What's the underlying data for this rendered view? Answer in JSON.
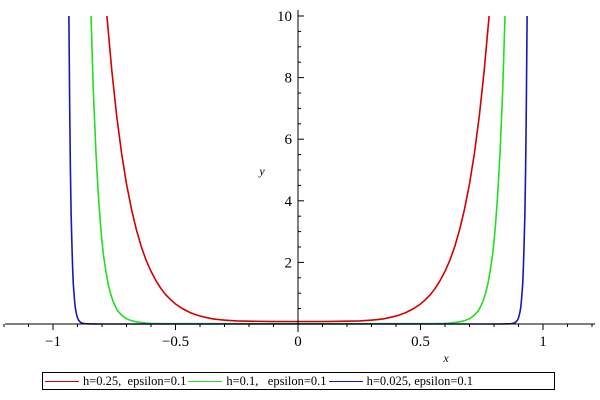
{
  "chart_data": {
    "type": "line",
    "title": "",
    "xlabel": "x",
    "ylabel": "y",
    "xlim": [
      -1.2,
      1.2
    ],
    "ylim": [
      -0.05,
      10
    ],
    "xticks": [
      -1,
      -0.5,
      0,
      0.5,
      1
    ],
    "xtick_labels": [
      "−1",
      "−0.5",
      "0",
      "0.5",
      "1"
    ],
    "yticks": [
      2,
      4,
      6,
      8,
      10
    ],
    "ytick_labels": [
      "2",
      "4",
      "6",
      "8",
      "10"
    ],
    "grid": false,
    "legend_position": "bottom",
    "series": [
      {
        "name": "h=0.25,  epsilon=0.1",
        "color": "#d40000",
        "x": [
          -0.78,
          -0.76,
          -0.74,
          -0.72,
          -0.7,
          -0.68,
          -0.66,
          -0.64,
          -0.62,
          -0.6,
          -0.58,
          -0.56,
          -0.54,
          -0.52,
          -0.5,
          -0.47,
          -0.44,
          -0.41,
          -0.38,
          -0.35,
          -0.32,
          -0.29,
          -0.25,
          -0.2,
          -0.1,
          0,
          0.1,
          0.2,
          0.25,
          0.29,
          0.32,
          0.35,
          0.38,
          0.41,
          0.44,
          0.47,
          0.5,
          0.52,
          0.54,
          0.56,
          0.58,
          0.6,
          0.62,
          0.64,
          0.66,
          0.68,
          0.7,
          0.72,
          0.74,
          0.76,
          0.78
        ],
        "y": [
          10.0,
          8.23,
          6.75,
          5.54,
          4.55,
          3.74,
          3.07,
          2.52,
          2.07,
          1.71,
          1.41,
          1.16,
          0.95,
          0.79,
          0.65,
          0.49,
          0.37,
          0.28,
          0.22,
          0.17,
          0.14,
          0.12,
          0.1,
          0.09,
          0.08,
          0.08,
          0.08,
          0.09,
          0.1,
          0.12,
          0.14,
          0.17,
          0.22,
          0.28,
          0.37,
          0.49,
          0.65,
          0.79,
          0.95,
          1.16,
          1.41,
          1.71,
          2.07,
          2.52,
          3.07,
          3.74,
          4.55,
          5.54,
          6.75,
          8.23,
          10.0
        ]
      },
      {
        "name": "h=0.1,   epsilon=0.1",
        "color": "#22dd22",
        "x": [
          -0.845,
          -0.835,
          -0.825,
          -0.815,
          -0.805,
          -0.795,
          -0.785,
          -0.775,
          -0.765,
          -0.755,
          -0.745,
          -0.735,
          -0.72,
          -0.7,
          -0.68,
          -0.66,
          -0.64,
          -0.62,
          -0.6,
          -0.55,
          -0.5,
          -0.4,
          -0.2,
          0,
          0.2,
          0.4,
          0.5,
          0.55,
          0.6,
          0.62,
          0.64,
          0.66,
          0.68,
          0.7,
          0.72,
          0.735,
          0.745,
          0.755,
          0.765,
          0.775,
          0.785,
          0.795,
          0.805,
          0.815,
          0.825,
          0.835,
          0.845
        ],
        "y": [
          10.0,
          7.5,
          5.6,
          4.2,
          3.1,
          2.3,
          1.75,
          1.3,
          0.98,
          0.74,
          0.56,
          0.42,
          0.29,
          0.17,
          0.11,
          0.07,
          0.05,
          0.03,
          0.02,
          0.01,
          0.01,
          0.01,
          0.01,
          0.01,
          0.01,
          0.01,
          0.01,
          0.01,
          0.02,
          0.03,
          0.05,
          0.07,
          0.11,
          0.17,
          0.29,
          0.42,
          0.56,
          0.74,
          0.98,
          1.3,
          1.75,
          2.3,
          3.1,
          4.2,
          5.6,
          7.5,
          10.0
        ]
      },
      {
        "name": "h=0.025, epsilon=0.1",
        "color": "#1818b8",
        "x": [
          -0.935,
          -0.932,
          -0.929,
          -0.926,
          -0.923,
          -0.92,
          -0.917,
          -0.914,
          -0.911,
          -0.908,
          -0.905,
          -0.9,
          -0.895,
          -0.89,
          -0.885,
          -0.88,
          -0.87,
          -0.86,
          -0.84,
          -0.8,
          -0.7,
          -0.4,
          0,
          0.4,
          0.7,
          0.8,
          0.84,
          0.86,
          0.87,
          0.88,
          0.885,
          0.89,
          0.895,
          0.9,
          0.905,
          0.908,
          0.911,
          0.914,
          0.917,
          0.92,
          0.923,
          0.926,
          0.929,
          0.932,
          0.935
        ],
        "y": [
          10.0,
          7.0,
          5.0,
          3.6,
          2.6,
          1.85,
          1.3,
          0.95,
          0.68,
          0.48,
          0.35,
          0.2,
          0.12,
          0.07,
          0.04,
          0.025,
          0.01,
          0.005,
          0.002,
          0.0,
          0.0,
          0.0,
          0.0,
          0.0,
          0.0,
          0.0,
          0.002,
          0.005,
          0.01,
          0.025,
          0.04,
          0.07,
          0.12,
          0.2,
          0.35,
          0.48,
          0.68,
          0.95,
          1.3,
          1.85,
          2.6,
          3.6,
          5.0,
          7.0,
          10.0
        ]
      }
    ]
  }
}
